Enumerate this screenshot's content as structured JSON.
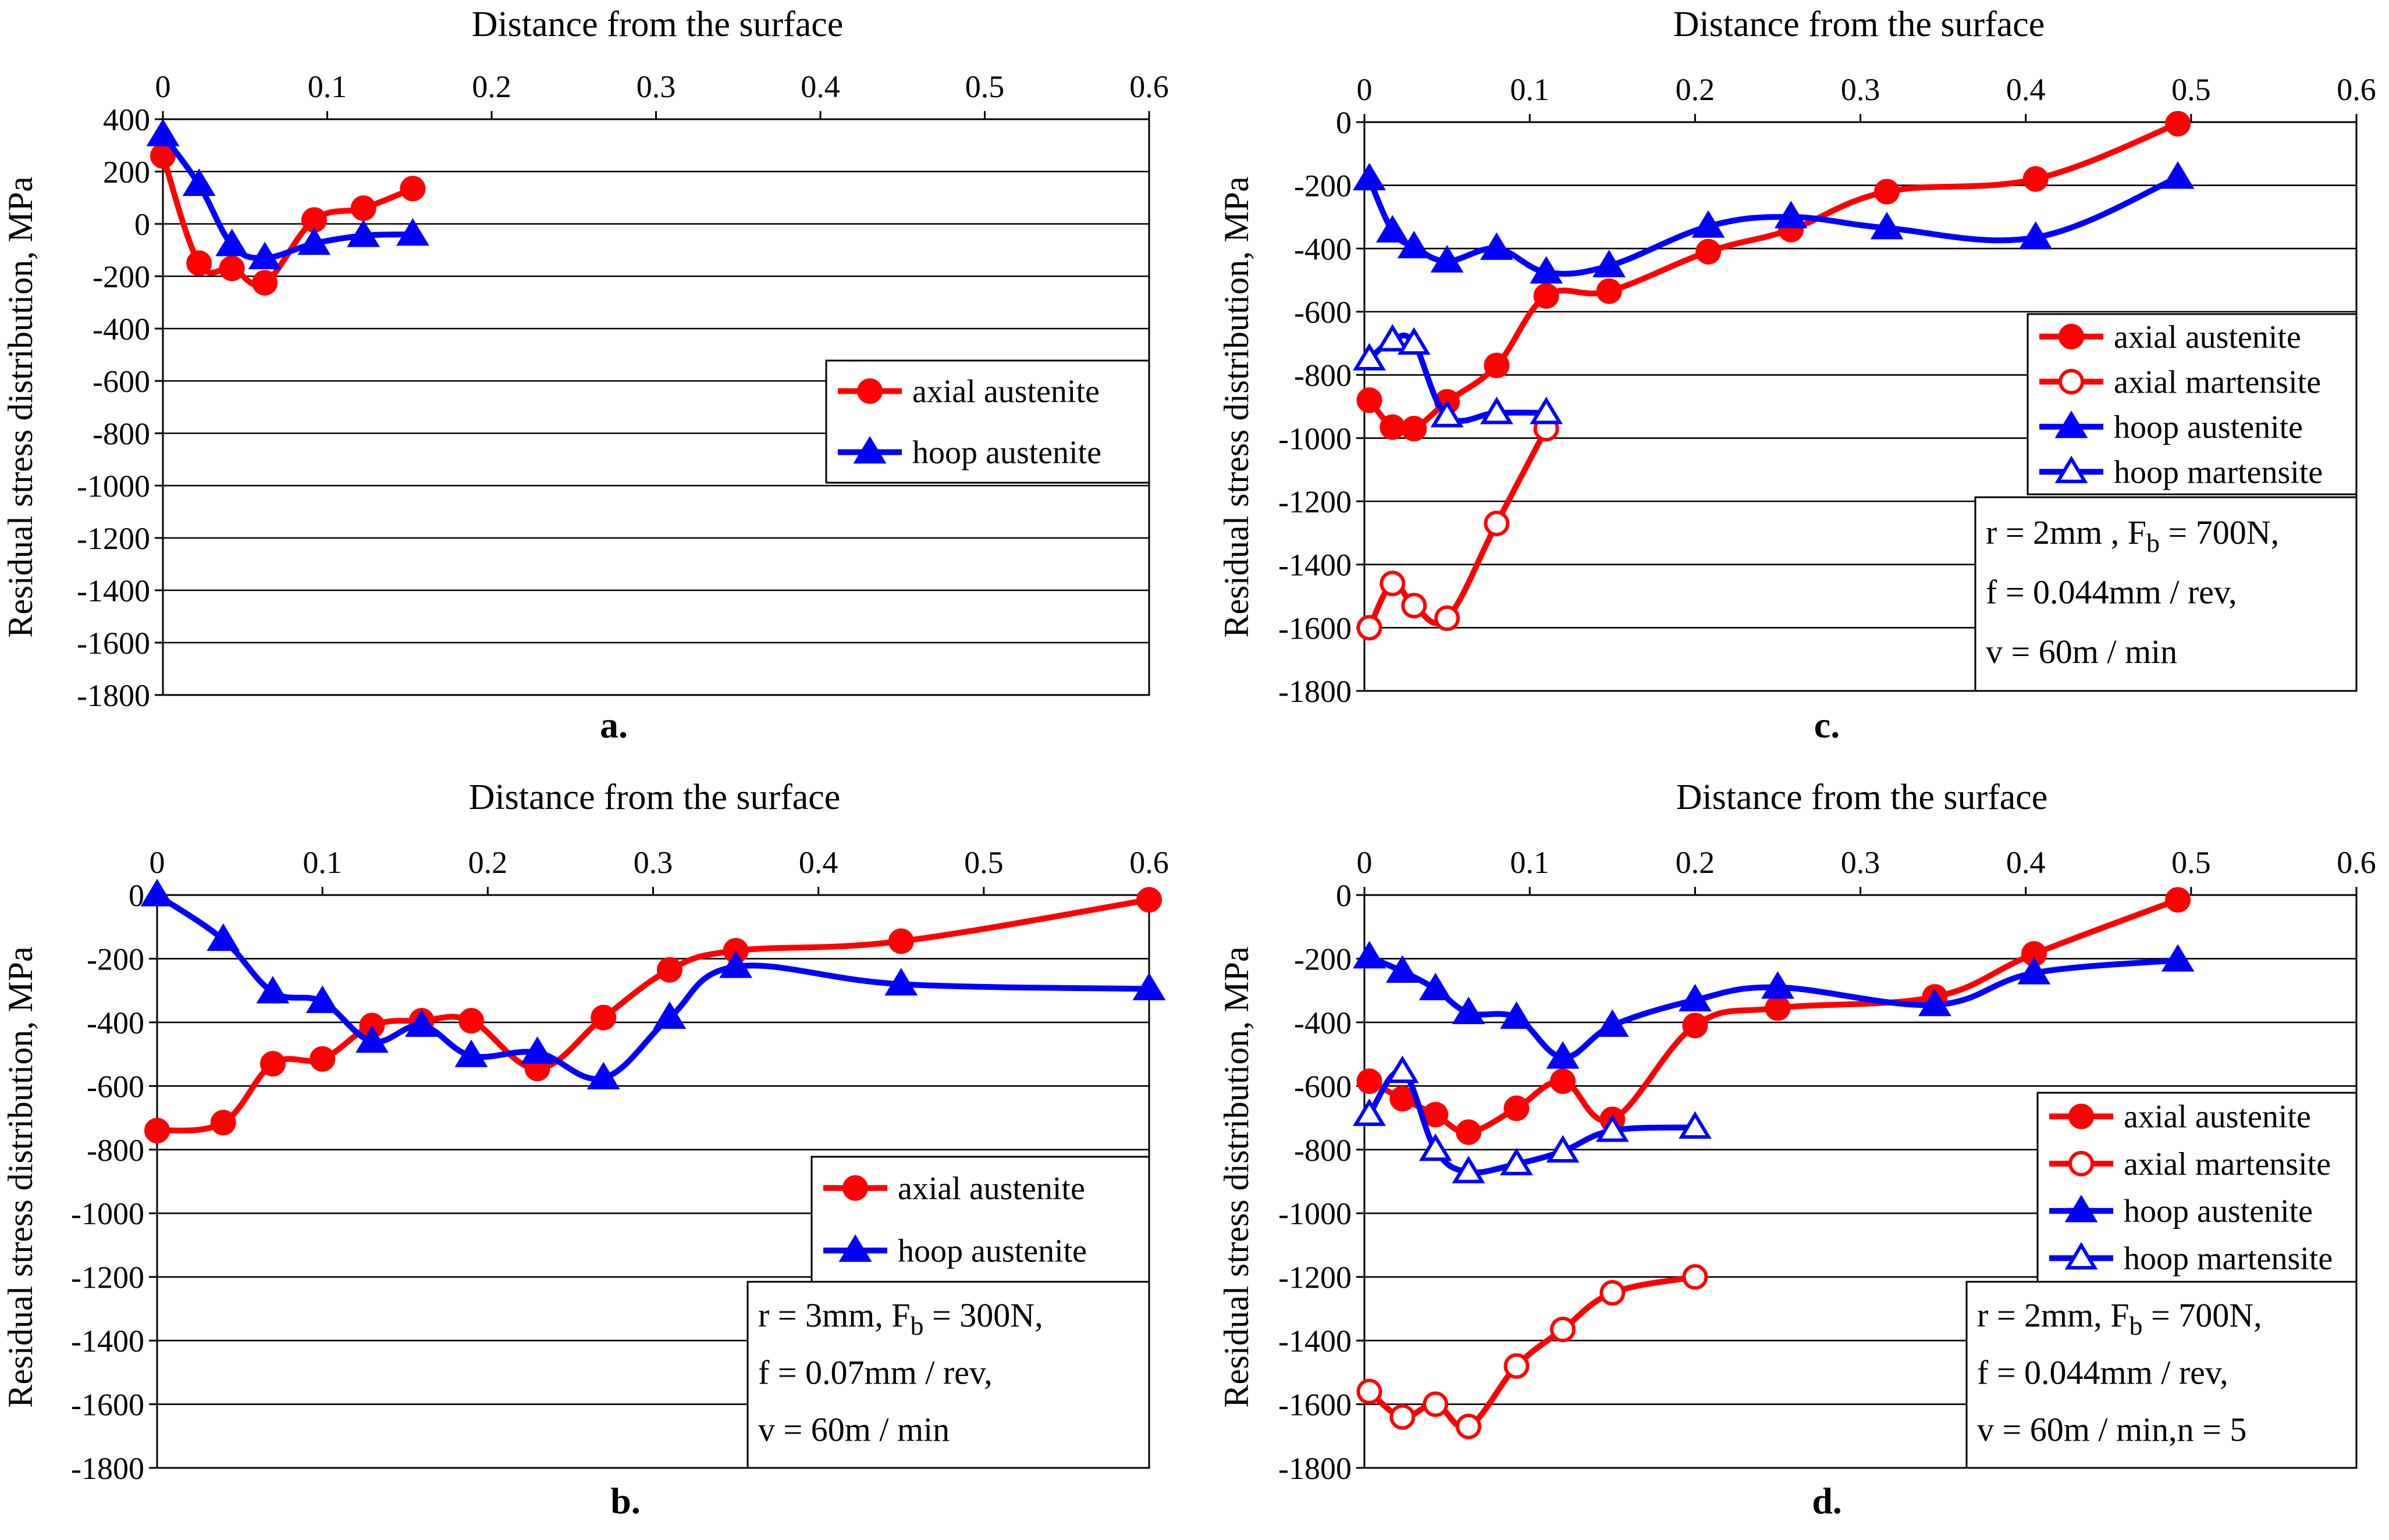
{
  "figure": {
    "colors": {
      "axial": "#ff0000",
      "hoop": "#0000ff",
      "grid": "#000000",
      "background": "#ffffff"
    }
  },
  "chart_data": [
    {
      "id": "a",
      "type": "line",
      "panel_label": "a.",
      "title": "",
      "xlabel": "Distance from the surface",
      "ylabel": "Residual stress distribution, MPa",
      "xlim": [
        0,
        0.6
      ],
      "ylim": [
        -1800,
        400
      ],
      "xticks": [
        0,
        0.1,
        0.2,
        0.3,
        0.4,
        0.5,
        0.6
      ],
      "xtick_labels": [
        "0",
        "0.1",
        "0.2",
        "0.3",
        "0.4",
        "0.5",
        "0.6"
      ],
      "yticks": [
        400,
        200,
        0,
        -200,
        -400,
        -600,
        -800,
        -1000,
        -1200,
        -1400,
        -1600,
        -1800
      ],
      "ytick_labels": [
        "400",
        "200",
        "0",
        "-200",
        "-400",
        "-600",
        "-800",
        "-1000",
        "-1200",
        "-1400",
        "-1600",
        "-1800"
      ],
      "grid": true,
      "legend_position": "middle-right",
      "series": [
        {
          "name": "axial austenite",
          "color": "#ff0000",
          "marker": "filled-circle",
          "x": [
            0.0,
            0.022,
            0.042,
            0.062,
            0.092,
            0.122,
            0.152
          ],
          "y": [
            260,
            -150,
            -170,
            -225,
            15,
            60,
            135
          ]
        },
        {
          "name": "hoop austenite",
          "color": "#0000ff",
          "marker": "filled-triangle",
          "x": [
            0.0,
            0.022,
            0.042,
            0.062,
            0.092,
            0.122,
            0.152
          ],
          "y": [
            340,
            150,
            -80,
            -130,
            -75,
            -45,
            -40
          ]
        }
      ],
      "parameters": []
    },
    {
      "id": "b",
      "type": "line",
      "panel_label": "b.",
      "title": "",
      "xlabel": "Distance from the surface",
      "ylabel": "Residual stress distribution, MPa",
      "xlim": [
        0,
        0.6
      ],
      "ylim": [
        -1800,
        0
      ],
      "xticks": [
        0,
        0.1,
        0.2,
        0.3,
        0.4,
        0.5,
        0.6
      ],
      "xtick_labels": [
        "0",
        "0.1",
        "0.2",
        "0.3",
        "0.4",
        "0.5",
        "0.6"
      ],
      "yticks": [
        0,
        -200,
        -400,
        -600,
        -800,
        -1000,
        -1200,
        -1400,
        -1600,
        -1800
      ],
      "ytick_labels": [
        "0",
        "-200",
        "-400",
        "-600",
        "-800",
        "-1000",
        "-1200",
        "-1400",
        "-1600",
        "-1800"
      ],
      "grid": true,
      "legend_position": "middle-right",
      "series": [
        {
          "name": "axial austenite",
          "color": "#ff0000",
          "marker": "filled-circle",
          "x": [
            0.0,
            0.04,
            0.07,
            0.1,
            0.13,
            0.16,
            0.19,
            0.23,
            0.27,
            0.31,
            0.35,
            0.45,
            0.6
          ],
          "y": [
            -740,
            -715,
            -530,
            -515,
            -410,
            -395,
            -395,
            -545,
            -385,
            -235,
            -175,
            -145,
            -15
          ]
        },
        {
          "name": "hoop austenite",
          "color": "#0000ff",
          "marker": "filled-triangle",
          "x": [
            0.0,
            0.04,
            0.07,
            0.1,
            0.13,
            0.16,
            0.19,
            0.23,
            0.27,
            0.31,
            0.35,
            0.45,
            0.6
          ],
          "y": [
            0,
            -140,
            -305,
            -335,
            -460,
            -410,
            -505,
            -495,
            -575,
            -385,
            -225,
            -280,
            -295
          ]
        }
      ],
      "parameters": [
        "r = 3mm,  Fb = 300N,",
        "f = 0.07mm / rev,",
        "v = 60m / min"
      ]
    },
    {
      "id": "c",
      "type": "line",
      "panel_label": "c.",
      "title": "",
      "xlabel": "Distance from the surface",
      "ylabel": "Residual stress distribution, MPa",
      "xlim": [
        0,
        0.6
      ],
      "ylim": [
        -1800,
        0
      ],
      "xticks": [
        0,
        0.1,
        0.2,
        0.3,
        0.4,
        0.5,
        0.6
      ],
      "xtick_labels": [
        "0",
        "0.1",
        "0.2",
        "0.3",
        "0.4",
        "0.5",
        "0.6"
      ],
      "yticks": [
        0,
        -200,
        -400,
        -600,
        -800,
        -1000,
        -1200,
        -1400,
        -1600,
        -1800
      ],
      "ytick_labels": [
        "0",
        "-200",
        "-400",
        "-600",
        "-800",
        "-1000",
        "-1200",
        "-1400",
        "-1600",
        "-1800"
      ],
      "grid": true,
      "legend_position": "middle-right",
      "series": [
        {
          "name": "axial austenite",
          "color": "#ff0000",
          "marker": "filled-circle",
          "x": [
            0.003,
            0.017,
            0.03,
            0.05,
            0.08,
            0.11,
            0.148,
            0.208,
            0.258,
            0.316,
            0.406,
            0.492
          ],
          "y": [
            -880,
            -965,
            -970,
            -885,
            -770,
            -550,
            -535,
            -410,
            -340,
            -220,
            -180,
            -5
          ]
        },
        {
          "name": "axial martensite",
          "color": "#ff0000",
          "marker": "open-circle",
          "x": [
            0.003,
            0.017,
            0.03,
            0.05,
            0.08,
            0.11
          ],
          "y": [
            -1600,
            -1460,
            -1530,
            -1570,
            -1270,
            -970
          ]
        },
        {
          "name": "hoop austenite",
          "color": "#0000ff",
          "marker": "filled-triangle",
          "x": [
            0.003,
            0.017,
            0.03,
            0.05,
            0.08,
            0.11,
            0.148,
            0.208,
            0.258,
            0.316,
            0.406,
            0.492
          ],
          "y": [
            -180,
            -345,
            -395,
            -440,
            -400,
            -475,
            -455,
            -330,
            -300,
            -335,
            -365,
            -175
          ]
        },
        {
          "name": "hoop martensite",
          "color": "#0000ff",
          "marker": "open-triangle",
          "x": [
            0.003,
            0.017,
            0.03,
            0.05,
            0.08,
            0.11
          ],
          "y": [
            -750,
            -690,
            -700,
            -930,
            -920,
            -920
          ]
        }
      ],
      "parameters": [
        "r = 2mm ,  Fb = 700N,",
        "f = 0.044mm / rev,",
        "v = 60m / min"
      ]
    },
    {
      "id": "d",
      "type": "line",
      "panel_label": "d.",
      "title": "",
      "xlabel": "Distance from the surface",
      "ylabel": "Residual stress distribution, MPa",
      "xlim": [
        0,
        0.6
      ],
      "ylim": [
        -1800,
        0
      ],
      "xticks": [
        0,
        0.1,
        0.2,
        0.3,
        0.4,
        0.5,
        0.6
      ],
      "xtick_labels": [
        "0",
        "0.1",
        "0.2",
        "0.3",
        "0.4",
        "0.5",
        "0.6"
      ],
      "yticks": [
        0,
        -200,
        -400,
        -600,
        -800,
        -1000,
        -1200,
        -1400,
        -1600,
        -1800
      ],
      "ytick_labels": [
        "0",
        "-200",
        "-400",
        "-600",
        "-800",
        "-1000",
        "-1200",
        "-1400",
        "-1600",
        "-1800"
      ],
      "grid": true,
      "legend_position": "middle-right",
      "series": [
        {
          "name": "axial austenite",
          "color": "#ff0000",
          "marker": "filled-circle",
          "x": [
            0.003,
            0.023,
            0.043,
            0.063,
            0.092,
            0.12,
            0.15,
            0.2,
            0.25,
            0.345,
            0.405,
            0.492
          ],
          "y": [
            -585,
            -640,
            -690,
            -745,
            -670,
            -585,
            -705,
            -410,
            -355,
            -320,
            -185,
            -15
          ]
        },
        {
          "name": "axial martensite",
          "color": "#ff0000",
          "marker": "open-circle",
          "x": [
            0.003,
            0.023,
            0.043,
            0.063,
            0.092,
            0.12,
            0.15,
            0.2
          ],
          "y": [
            -1560,
            -1640,
            -1600,
            -1670,
            -1480,
            -1365,
            -1250,
            -1200
          ]
        },
        {
          "name": "hoop austenite",
          "color": "#0000ff",
          "marker": "filled-triangle",
          "x": [
            0.003,
            0.023,
            0.043,
            0.063,
            0.092,
            0.12,
            0.15,
            0.2,
            0.25,
            0.345,
            0.405,
            0.492
          ],
          "y": [
            -195,
            -240,
            -295,
            -370,
            -385,
            -510,
            -410,
            -330,
            -290,
            -345,
            -245,
            -205
          ]
        },
        {
          "name": "hoop martensite",
          "color": "#0000ff",
          "marker": "open-triangle",
          "x": [
            0.003,
            0.023,
            0.043,
            0.063,
            0.092,
            0.12,
            0.15,
            0.2
          ],
          "y": [
            -690,
            -555,
            -800,
            -870,
            -845,
            -805,
            -740,
            -730
          ]
        }
      ],
      "parameters": [
        "r = 2mm,  Fb = 700N,",
        "f = 0.044mm / rev,",
        "v = 60m / min,n = 5"
      ]
    }
  ]
}
